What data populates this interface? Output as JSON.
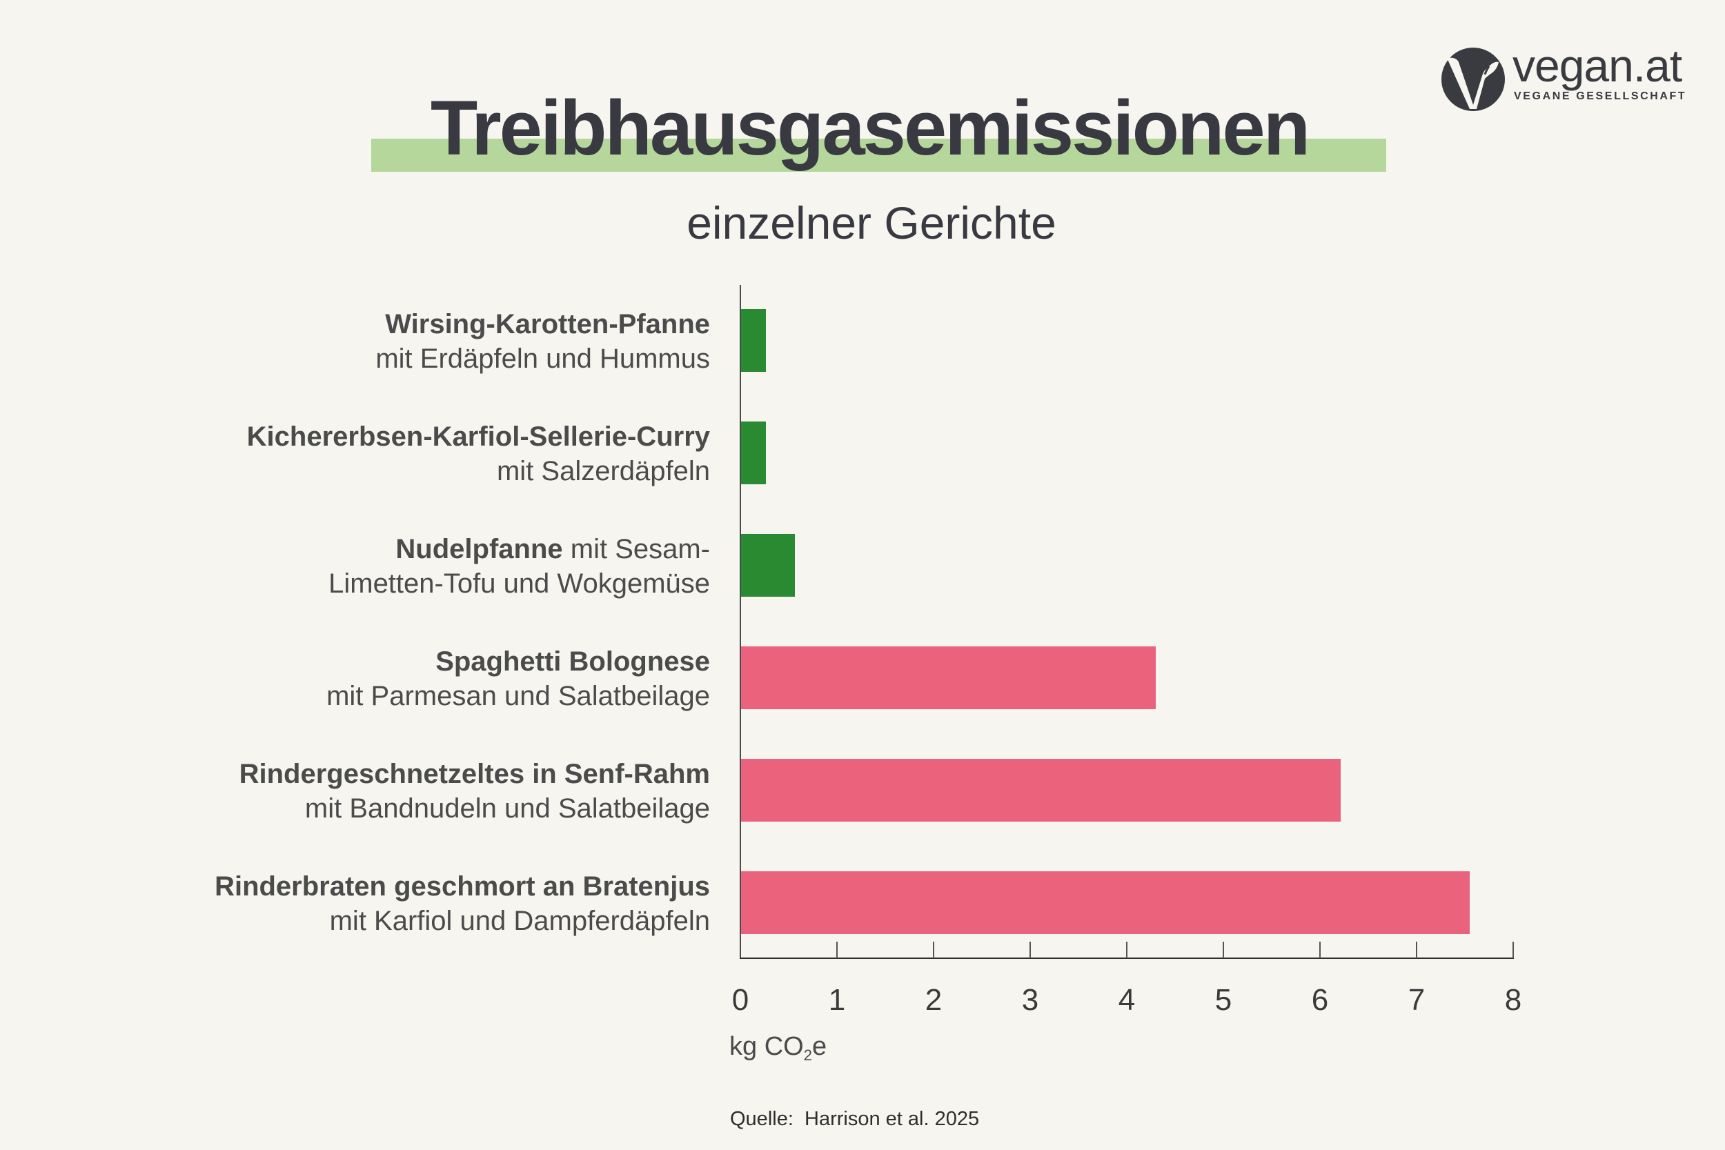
{
  "header": {
    "title": "Treibhausgasemissionen",
    "subtitle": "einzelner Gerichte",
    "highlight_color": "#b5d79c"
  },
  "logo": {
    "icon": "vegan-v-leaf-icon",
    "wordmark": "vegan.at",
    "tagline": "VEGANE GESELLSCHAFT"
  },
  "colors": {
    "vegan_bar": "#2a8a31",
    "meat_bar": "#eb627c",
    "background": "#f6f5f0",
    "text": "#3a3b40"
  },
  "dishes": [
    {
      "bold": "Wirsing-Karotten-Pfanne",
      "line1_rest": "",
      "line2": "mit Erdäpfeln und Hummus",
      "value": 0.26,
      "category": "vegan"
    },
    {
      "bold": "Kichererbsen-Karfiol-Sellerie-Curry",
      "line1_rest": "",
      "line2": "mit Salzerdäpfeln",
      "value": 0.26,
      "category": "vegan"
    },
    {
      "bold": "Nudelpfanne",
      "line1_rest": " mit Sesam-",
      "line2": "Limetten-Tofu und Wokgemüse",
      "value": 0.56,
      "category": "vegan"
    },
    {
      "bold": "Spaghetti Bolognese",
      "line1_rest": "",
      "line2": "mit Parmesan und Salatbeilage",
      "value": 4.29,
      "category": "meat"
    },
    {
      "bold": "Rindergeschnetzeltes in Senf-Rahm",
      "line1_rest": "",
      "line2": "mit Bandnudeln und Salatbeilage",
      "value": 6.21,
      "category": "meat"
    },
    {
      "bold": "Rinderbraten geschmort an Bratenjus",
      "line1_rest": "",
      "line2": "mit Karfiol und Dampferdäpfeln",
      "value": 7.54,
      "category": "meat"
    }
  ],
  "axis": {
    "ticks": [
      "0",
      "1",
      "2",
      "3",
      "4",
      "5",
      "6",
      "7",
      "8"
    ],
    "title_prefix": "kg CO",
    "title_sub": "2",
    "title_suffix": "e"
  },
  "source": "Quelle:  Harrison et al. 2025",
  "chart_data": {
    "type": "bar",
    "orientation": "horizontal",
    "title": "Treibhausgasemissionen",
    "subtitle": "einzelner Gerichte",
    "categories": [
      "Wirsing-Karotten-Pfanne mit Erdäpfeln und Hummus",
      "Kichererbsen-Karfiol-Sellerie-Curry mit Salzerdäpfeln",
      "Nudelpfanne mit Sesam-Limetten-Tofu und Wokgemüse",
      "Spaghetti Bolognese mit Parmesan und Salatbeilage",
      "Rindergeschnetzeltes in Senf-Rahm mit Bandnudeln und Salatbeilage",
      "Rinderbraten geschmort an Bratenjus mit Karfiol und Dampferdäpfeln"
    ],
    "values": [
      0.26,
      0.26,
      0.56,
      4.29,
      6.21,
      7.54
    ],
    "bar_colors": [
      "#2a8a31",
      "#2a8a31",
      "#2a8a31",
      "#eb627c",
      "#eb627c",
      "#eb627c"
    ],
    "xlabel": "kg CO2e",
    "ylabel": "",
    "xlim": [
      0,
      8
    ],
    "xticks": [
      0,
      1,
      2,
      3,
      4,
      5,
      6,
      7,
      8
    ],
    "grid": false,
    "legend": null,
    "source": "Quelle: Harrison et al. 2025"
  }
}
